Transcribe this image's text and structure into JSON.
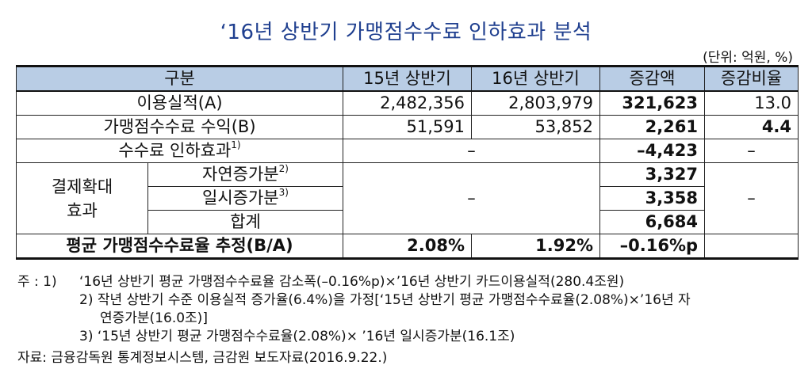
{
  "title": "‘16년 상반기 가맹점수수료 인하효과 분석",
  "unit": "(단위: 억원, %)",
  "headers": [
    "구분",
    "15년 상반기",
    "16년 상반기",
    "증감액",
    "증감비율"
  ],
  "rows": {
    "usage": {
      "label": "이용실적(A)",
      "h15": "2,482,356",
      "h16": "2,803,979",
      "diff": "321,623",
      "ratio": "13.0"
    },
    "revenue": {
      "label": "가맹점수수료 수익(B)",
      "h15": "51,591",
      "h16": "53,852",
      "diff": "2,261",
      "ratio": "4.4"
    },
    "cut": {
      "label": "수수료 인하효과",
      "sup": "1)",
      "h": "–",
      "diff": "–4,423",
      "ratio": "–"
    },
    "expansion": {
      "group_line1": "결제확대",
      "group_line2": "효과",
      "natural": {
        "label": "자연증가분",
        "sup": "2)",
        "diff": "3,327"
      },
      "temporary": {
        "label": "일시증가분",
        "sup": "3)",
        "diff": "3,358"
      },
      "total": {
        "label": "합계",
        "diff": "6,684"
      },
      "h": "–",
      "ratio": "–"
    },
    "avg": {
      "label": "평균 가맹점수수료율 추정(B/A)",
      "h15": "2.08%",
      "h16": "1.92%",
      "diff": "–0.16%p",
      "ratio": ""
    }
  },
  "notes": {
    "lead": "주 : 1)",
    "n1": "‘16년 상반기 평균 가맹점수수료율 감소폭(–0.16%p)×’16년 상반기 카드이용실적(280.4조원)",
    "n2a": "2) 작년 상반기 수준 이용실적 증가율(6.4%)을 가정[‘15년 상반기 평균 가맹점수수료율(2.08%)×’16년 자",
    "n2b": "연증가분(16.0조)]",
    "n3": "3) ‘15년 상반기 평균 가맹점수수료율(2.08%)× ’16년 일시증가분(16.1조)",
    "source": "자료: 금융감독원 통계정보시스템, 금감원 보도자료(2016.9.22.)"
  }
}
